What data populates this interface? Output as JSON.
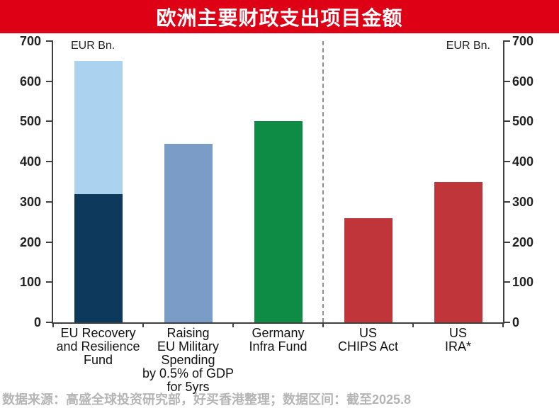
{
  "title": {
    "text": "欧洲主要财政支出项目金额",
    "bg_color": "#de0014",
    "text_color": "#ffffff"
  },
  "source": {
    "text": "数据来源：高盛全球投资研究部，好买香港整理；数据区间：截至2025.8"
  },
  "chart_data": {
    "type": "bar",
    "title": "欧洲主要财政支出项目金额",
    "unit_label_left": "EUR Bn.",
    "unit_label_right": "EUR Bn.",
    "ylim": [
      0,
      700
    ],
    "yticks": [
      0,
      100,
      200,
      300,
      400,
      500,
      600,
      700
    ],
    "grid": false,
    "legend": "none",
    "divider_at_category_boundary": 3,
    "divider_style": "dashed",
    "axis_color": "#3f3f3f",
    "categories": [
      {
        "label_lines": [
          "EU Recovery",
          "and Resilience",
          "Fund"
        ]
      },
      {
        "label_lines": [
          "Raising",
          "EU Military",
          "Spending",
          "by 0.5% of GDP",
          "for 5yrs"
        ]
      },
      {
        "label_lines": [
          "Germany",
          "Infra Fund"
        ]
      },
      {
        "label_lines": [
          "US",
          "CHIPS Act"
        ]
      },
      {
        "label_lines": [
          "US",
          "IRA*"
        ]
      }
    ],
    "bars": [
      {
        "category": "EU Recovery and Resilience Fund",
        "total": 650,
        "segments": [
          {
            "name": "lower-segment",
            "value": 320,
            "color": "#0d395c"
          },
          {
            "name": "upper-segment",
            "value": 330,
            "color": "#abd2ee"
          }
        ]
      },
      {
        "category": "Raising EU Military Spending by 0.5% of GDP for 5yrs",
        "total": 445,
        "segments": [
          {
            "name": "single-segment",
            "value": 445,
            "color": "#7b9cc6"
          }
        ]
      },
      {
        "category": "Germany Infra Fund",
        "total": 500,
        "segments": [
          {
            "name": "single-segment",
            "value": 500,
            "color": "#0e8c45"
          }
        ]
      },
      {
        "category": "US CHIPS Act",
        "total": 260,
        "segments": [
          {
            "name": "single-segment",
            "value": 260,
            "color": "#c0353a"
          }
        ]
      },
      {
        "category": "US IRA*",
        "total": 350,
        "segments": [
          {
            "name": "single-segment",
            "value": 350,
            "color": "#c0353a"
          }
        ]
      }
    ]
  }
}
